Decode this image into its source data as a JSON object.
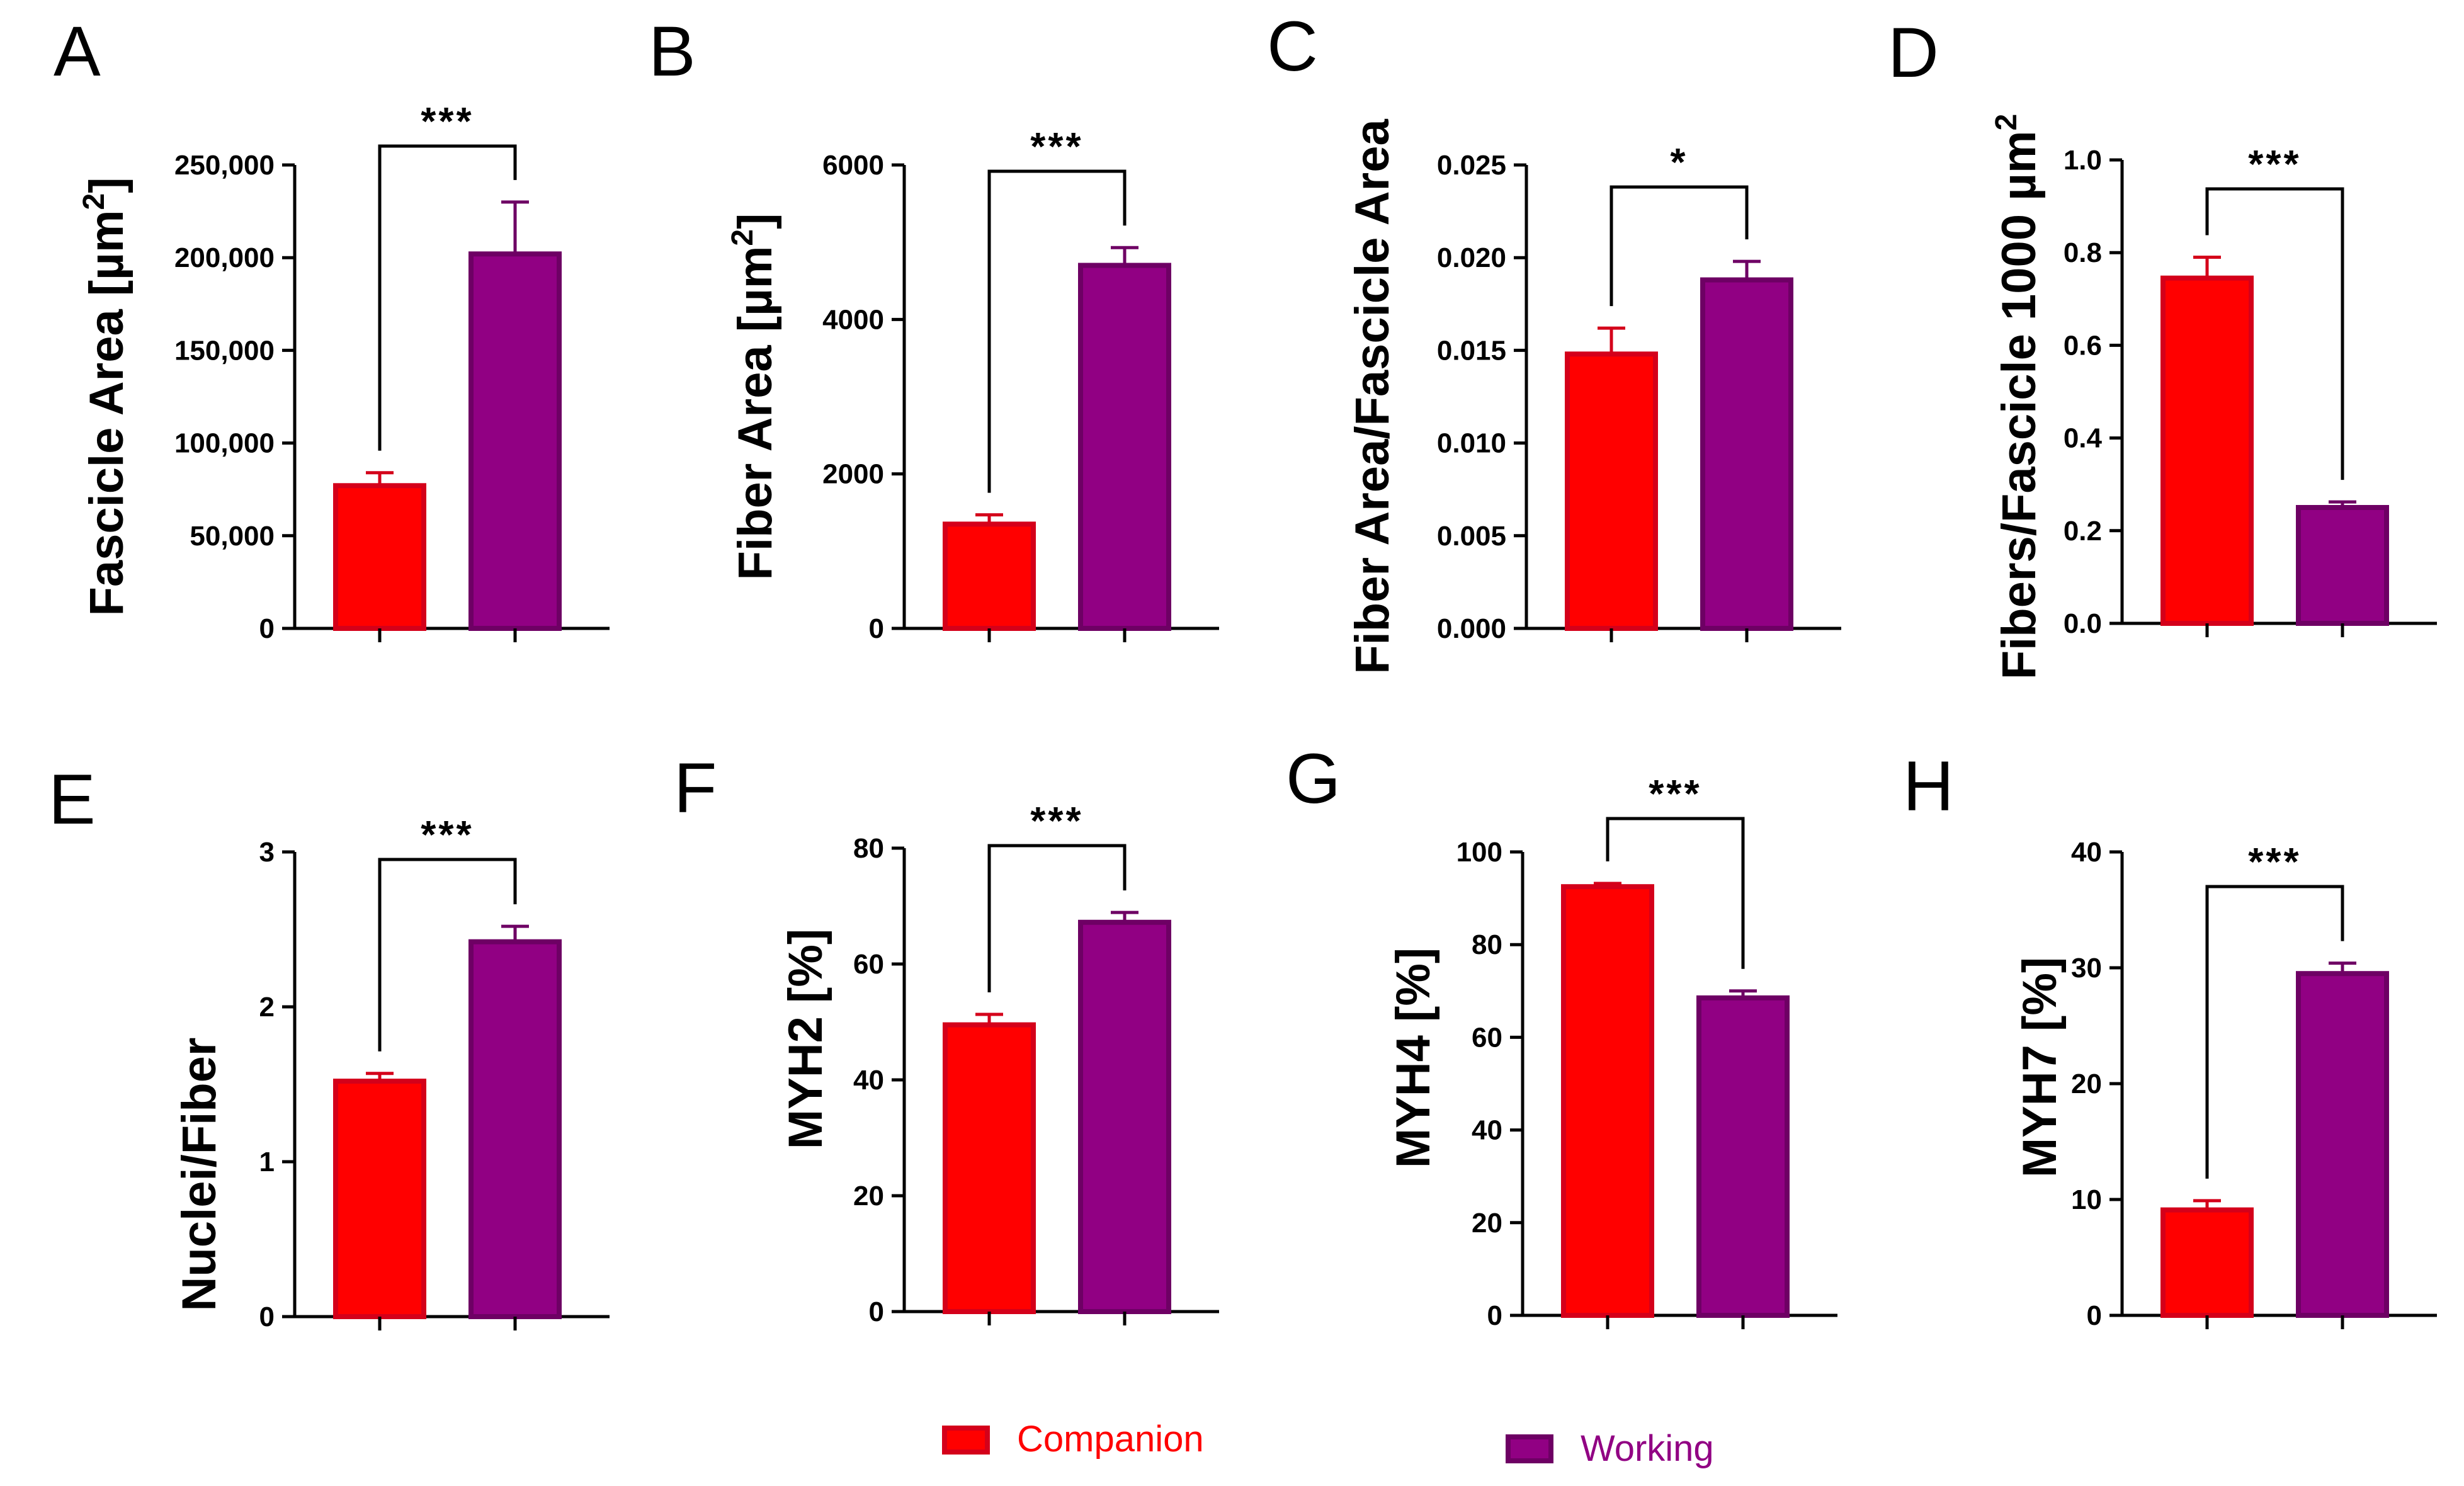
{
  "legend": {
    "companion_label": "Companion",
    "working_label": "Working",
    "companion_color": "#FF0000",
    "companion_border": "#D4001A",
    "working_color": "#910083",
    "working_border": "#6E0064"
  },
  "chart_data": [
    {
      "type": "bar",
      "panel": "A",
      "ylabel": "Fascicle Area [µm²]",
      "ylabel_main": "Fascicle Area [µm",
      "ylabel_sup": "2",
      "ylabel_tail": "]",
      "categories": [
        "Companion",
        "Working"
      ],
      "values": [
        77000,
        202000
      ],
      "errors": [
        7000,
        28000
      ],
      "ylim": [
        0,
        250000
      ],
      "yticks": [
        0,
        50000,
        100000,
        150000,
        200000,
        250000
      ],
      "ytick_labels": [
        "0",
        "50,000",
        "100,000",
        "150,000",
        "200,000",
        "250,000"
      ],
      "significance": "***"
    },
    {
      "type": "bar",
      "panel": "B",
      "ylabel": "Fiber Area [µm²]",
      "ylabel_main": "Fiber Area [µm",
      "ylabel_sup": "2",
      "ylabel_tail": "]",
      "categories": [
        "Companion",
        "Working"
      ],
      "values": [
        1350,
        4700
      ],
      "errors": [
        120,
        230
      ],
      "ylim": [
        0,
        6000
      ],
      "yticks": [
        0,
        2000,
        4000,
        6000
      ],
      "ytick_labels": [
        "0",
        "2000",
        "4000",
        "6000"
      ],
      "significance": "***"
    },
    {
      "type": "bar",
      "panel": "C",
      "ylabel": "Fiber Area/Fascicle Area",
      "ylabel_main": "Fiber Area/Fascicle Area",
      "categories": [
        "Companion",
        "Working"
      ],
      "values": [
        0.0148,
        0.0188
      ],
      "errors": [
        0.0014,
        0.001
      ],
      "ylim": [
        0,
        0.025
      ],
      "yticks": [
        0,
        0.005,
        0.01,
        0.015,
        0.02,
        0.025
      ],
      "ytick_labels": [
        "0.000",
        "0.005",
        "0.010",
        "0.015",
        "0.020",
        "0.025"
      ],
      "significance": "*"
    },
    {
      "type": "bar",
      "panel": "D",
      "ylabel": "Fibers/Fascicle 1000 µm²",
      "ylabel_main": "Fibers/Fascicle 1000 µm",
      "ylabel_sup": "2",
      "categories": [
        "Companion",
        "Working"
      ],
      "values": [
        0.745,
        0.25
      ],
      "errors": [
        0.045,
        0.012
      ],
      "ylim": [
        0,
        1.0
      ],
      "yticks": [
        0,
        0.2,
        0.4,
        0.6,
        0.8,
        1.0
      ],
      "ytick_labels": [
        "0.0",
        "0.2",
        "0.4",
        "0.6",
        "0.8",
        "1.0"
      ],
      "significance": "***"
    },
    {
      "type": "bar",
      "panel": "E",
      "ylabel": "Nuclei/Fiber",
      "ylabel_main": "Nuclei/Fiber",
      "categories": [
        "Companion",
        "Working"
      ],
      "values": [
        1.52,
        2.42
      ],
      "errors": [
        0.05,
        0.1
      ],
      "ylim": [
        0,
        3
      ],
      "yticks": [
        0,
        1,
        2,
        3
      ],
      "ytick_labels": [
        "0",
        "1",
        "2",
        "3"
      ],
      "significance": "***"
    },
    {
      "type": "bar",
      "panel": "F",
      "ylabel": "MYH2 [%]",
      "ylabel_main": "MYH2 [%]",
      "categories": [
        "Companion",
        "Working"
      ],
      "values": [
        49.5,
        67.2
      ],
      "errors": [
        1.8,
        1.7
      ],
      "ylim": [
        0,
        80
      ],
      "yticks": [
        0,
        20,
        40,
        60,
        80
      ],
      "ytick_labels": [
        "0",
        "20",
        "40",
        "60",
        "80"
      ],
      "significance": "***"
    },
    {
      "type": "bar",
      "panel": "G",
      "ylabel": "MYH4 [%]",
      "ylabel_main": "MYH4 [%]",
      "categories": [
        "Companion",
        "Working"
      ],
      "values": [
        92.5,
        68.5
      ],
      "errors": [
        0.7,
        1.5
      ],
      "ylim": [
        0,
        100
      ],
      "yticks": [
        0,
        20,
        40,
        60,
        80,
        100
      ],
      "ytick_labels": [
        "0",
        "20",
        "40",
        "60",
        "80",
        "100"
      ],
      "significance": "***"
    },
    {
      "type": "bar",
      "panel": "H",
      "ylabel": "MYH7 [%]",
      "ylabel_main": "MYH7 [%]",
      "categories": [
        "Companion",
        "Working"
      ],
      "values": [
        9.1,
        29.5
      ],
      "errors": [
        0.8,
        0.9
      ],
      "ylim": [
        0,
        40
      ],
      "yticks": [
        0,
        10,
        20,
        30,
        40
      ],
      "ytick_labels": [
        "0",
        "10",
        "20",
        "30",
        "40"
      ],
      "significance": "***"
    }
  ]
}
